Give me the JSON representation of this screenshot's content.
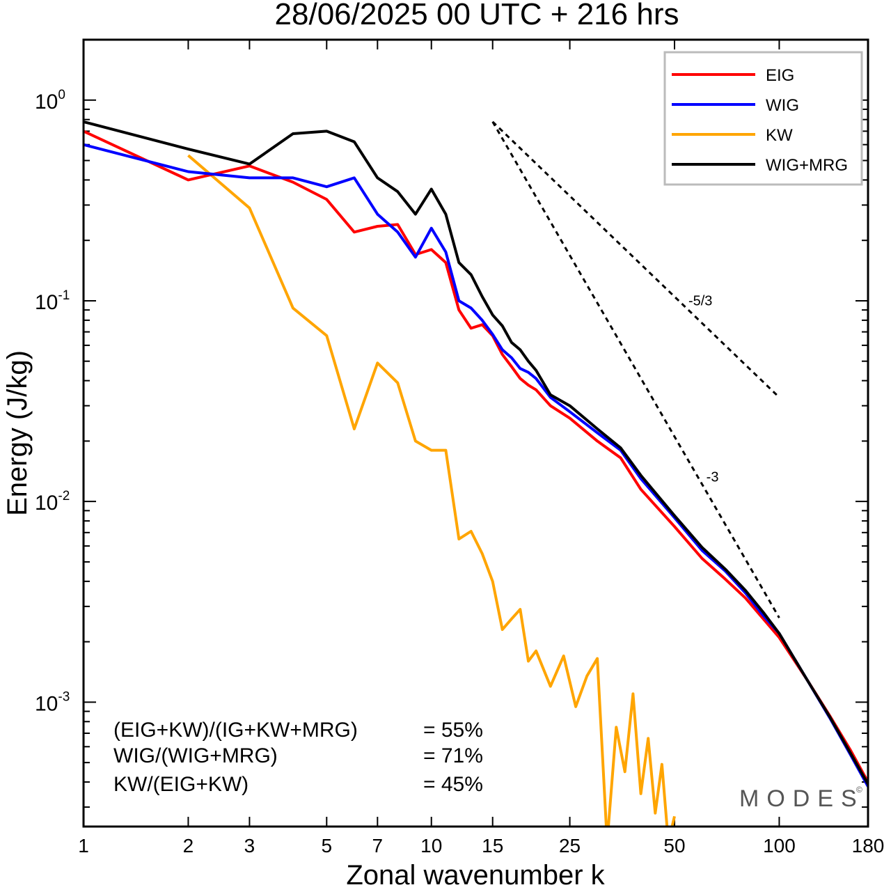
{
  "chart_data": {
    "type": "line",
    "title": "28/06/2025  00 UTC  + 216 hrs",
    "xlabel": "Zonal wavenumber k",
    "ylabel": "Energy (J/kg)",
    "xscale": "log",
    "yscale": "log",
    "xlim": [
      1,
      180
    ],
    "ylim": [
      0.00024,
      2.0
    ],
    "xticks": [
      1,
      2,
      3,
      5,
      7,
      10,
      15,
      25,
      50,
      100,
      180
    ],
    "xtick_labels": [
      "1",
      "2",
      "3",
      "5",
      "7",
      "10",
      "15",
      "25",
      "50",
      "100",
      "180"
    ],
    "yticks": [
      {
        "value": 1,
        "base": "10",
        "exp": "0"
      },
      {
        "value": 0.1,
        "base": "10",
        "exp": "-1"
      },
      {
        "value": 0.01,
        "base": "10",
        "exp": "-2"
      },
      {
        "value": 0.001,
        "base": "10",
        "exp": "-3"
      }
    ],
    "legend": {
      "position": "top-right"
    },
    "series": [
      {
        "name": "EIG",
        "color": "#ff0000",
        "x": [
          1,
          2,
          3,
          4,
          5,
          6,
          7,
          8,
          9,
          10,
          11,
          12,
          13,
          14,
          15,
          16,
          17,
          18,
          19,
          20,
          22,
          25,
          30,
          35,
          40,
          50,
          60,
          70,
          80,
          90,
          100,
          120,
          140,
          160,
          180
        ],
        "y": [
          0.7,
          0.4,
          0.47,
          0.39,
          0.32,
          0.22,
          0.235,
          0.24,
          0.17,
          0.18,
          0.155,
          0.09,
          0.073,
          0.076,
          0.067,
          0.054,
          0.047,
          0.041,
          0.038,
          0.036,
          0.03,
          0.026,
          0.02,
          0.0165,
          0.0115,
          0.0075,
          0.0052,
          0.0041,
          0.0033,
          0.0026,
          0.0021,
          0.0013,
          0.00085,
          0.00058,
          0.0004
        ]
      },
      {
        "name": "WIG",
        "color": "#0000ff",
        "x": [
          1,
          2,
          3,
          4,
          5,
          6,
          7,
          8,
          9,
          10,
          11,
          12,
          13,
          14,
          15,
          16,
          17,
          18,
          19,
          20,
          22,
          25,
          30,
          35,
          40,
          50,
          60,
          70,
          80,
          90,
          100,
          120,
          140,
          160,
          180
        ],
        "y": [
          0.6,
          0.44,
          0.41,
          0.41,
          0.37,
          0.41,
          0.27,
          0.22,
          0.165,
          0.23,
          0.175,
          0.1,
          0.092,
          0.08,
          0.068,
          0.057,
          0.052,
          0.046,
          0.044,
          0.041,
          0.033,
          0.028,
          0.022,
          0.018,
          0.013,
          0.0083,
          0.0057,
          0.0045,
          0.0035,
          0.0027,
          0.0022,
          0.0013,
          0.00083,
          0.00055,
          0.00038
        ]
      },
      {
        "name": "KW",
        "color": "#ffa500",
        "x": [
          2,
          3,
          4,
          5,
          6,
          7,
          8,
          9,
          10,
          11,
          12,
          13,
          14,
          15,
          16,
          17,
          18,
          19,
          20,
          22,
          24,
          26,
          28,
          30,
          32,
          34,
          36,
          38,
          40,
          42,
          44,
          46,
          48,
          50
        ],
        "y": [
          0.53,
          0.29,
          0.092,
          0.067,
          0.023,
          0.049,
          0.039,
          0.02,
          0.018,
          0.018,
          0.0065,
          0.0071,
          0.0055,
          0.004,
          0.0023,
          0.0026,
          0.0029,
          0.0016,
          0.0018,
          0.0012,
          0.0017,
          0.00095,
          0.00135,
          0.00165,
          0.0002,
          0.00075,
          0.00045,
          0.0011,
          0.00035,
          0.00066,
          0.00028,
          0.00049,
          0.0002,
          0.00027
        ]
      },
      {
        "name": "WIG+MRG",
        "color": "#000000",
        "x": [
          1,
          2,
          3,
          4,
          5,
          6,
          7,
          8,
          9,
          10,
          11,
          12,
          13,
          14,
          15,
          16,
          17,
          18,
          19,
          20,
          22,
          25,
          30,
          35,
          40,
          50,
          60,
          70,
          80,
          90,
          100,
          120,
          140,
          160,
          180
        ],
        "y": [
          0.78,
          0.57,
          0.48,
          0.68,
          0.7,
          0.62,
          0.41,
          0.35,
          0.27,
          0.36,
          0.27,
          0.155,
          0.135,
          0.105,
          0.085,
          0.075,
          0.062,
          0.057,
          0.05,
          0.045,
          0.034,
          0.03,
          0.023,
          0.0185,
          0.0135,
          0.0085,
          0.0059,
          0.0046,
          0.0036,
          0.0028,
          0.0022,
          0.0013,
          0.00084,
          0.00056,
          0.00039
        ]
      }
    ],
    "reference_lines": [
      {
        "label": "-5/3",
        "slope": -1.6667,
        "x": [
          15,
          100
        ],
        "y_start": 0.78
      },
      {
        "label": "-3",
        "slope": -3,
        "x": [
          15,
          100
        ],
        "y_start": 0.78
      }
    ]
  },
  "annotations": {
    "ratios": [
      {
        "label": "(EIG+KW)/(IG+KW+MRG)",
        "value": "= 55%"
      },
      {
        "label": "WIG/(WIG+MRG)",
        "value": "= 71%"
      },
      {
        "label": "KW/(EIG+KW)",
        "value": "= 45%"
      }
    ],
    "brand": "MODES",
    "brand_mark": "©"
  }
}
